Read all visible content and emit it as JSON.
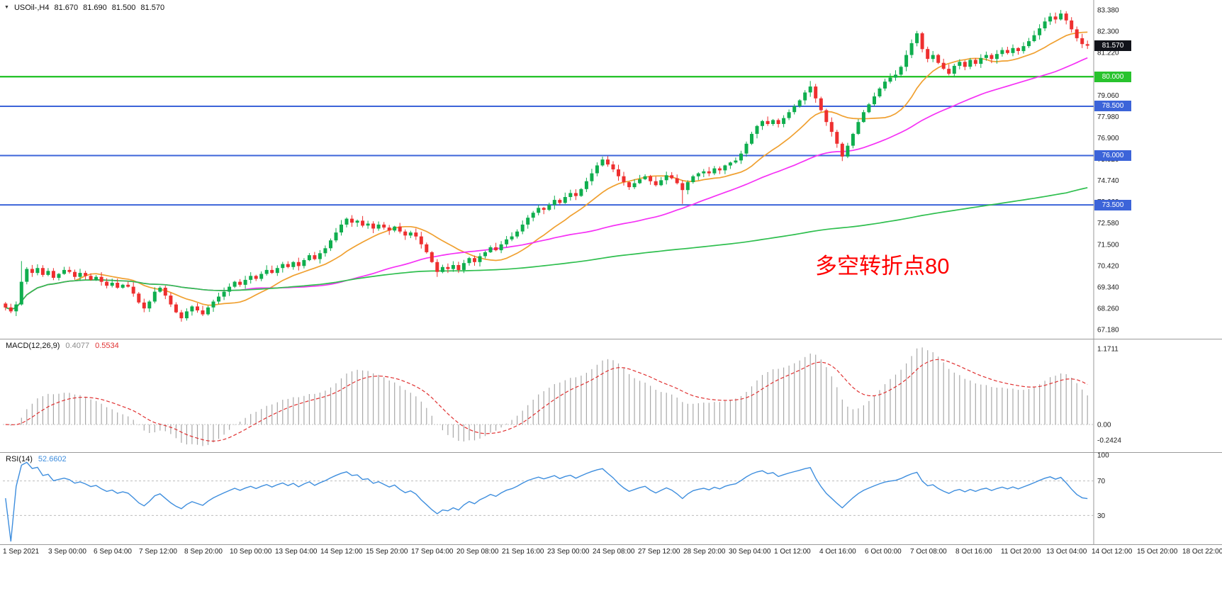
{
  "window": {
    "title_symbol": "USOil-,H4",
    "ohlc": {
      "open": "81.670",
      "high": "81.690",
      "low": "81.500",
      "close": "81.570"
    }
  },
  "annotation": {
    "text": "多空转折点80",
    "color": "#ff0000"
  },
  "current_price": {
    "value": "81.570",
    "badge_bg": "#11131a",
    "badge_fg": "#ffffff"
  },
  "chart_data": {
    "type": "candlestick",
    "symbol": "USOil",
    "timeframe": "H4",
    "grid": "off",
    "price_range": [
      67.0,
      83.6
    ],
    "first_open": 68.5,
    "closes": [
      68.3,
      68.1,
      68.45,
      69.6,
      70.25,
      70.05,
      70.3,
      69.95,
      70.15,
      69.8,
      70.0,
      70.2,
      70.1,
      69.85,
      70.05,
      69.9,
      69.7,
      69.85,
      69.6,
      69.4,
      69.55,
      69.3,
      69.45,
      69.35,
      69.0,
      68.55,
      68.25,
      68.6,
      69.1,
      69.3,
      68.9,
      68.45,
      68.05,
      67.75,
      68.1,
      68.35,
      68.15,
      67.95,
      68.3,
      68.6,
      68.85,
      69.1,
      69.35,
      69.6,
      69.45,
      69.7,
      69.9,
      69.75,
      70.0,
      70.2,
      70.05,
      70.3,
      70.5,
      70.35,
      70.6,
      70.4,
      70.7,
      70.95,
      70.75,
      71.05,
      71.3,
      71.7,
      72.1,
      72.5,
      72.8,
      72.6,
      72.7,
      72.45,
      72.55,
      72.3,
      72.5,
      72.35,
      72.2,
      72.4,
      72.15,
      71.95,
      72.1,
      71.9,
      71.5,
      71.1,
      70.6,
      70.1,
      70.35,
      70.25,
      70.45,
      70.2,
      70.55,
      70.8,
      70.6,
      70.9,
      71.1,
      71.35,
      71.2,
      71.5,
      71.75,
      71.9,
      72.15,
      72.5,
      72.85,
      73.1,
      73.35,
      73.25,
      73.5,
      73.75,
      73.6,
      73.9,
      74.1,
      73.95,
      74.3,
      74.7,
      75.1,
      75.5,
      75.8,
      75.55,
      75.3,
      74.95,
      74.65,
      74.4,
      74.6,
      74.8,
      74.95,
      74.7,
      74.5,
      74.75,
      75.0,
      74.85,
      74.6,
      74.25,
      74.65,
      74.95,
      75.1,
      75.2,
      75.1,
      75.35,
      75.25,
      75.5,
      75.65,
      75.75,
      76.1,
      76.6,
      77.1,
      77.5,
      77.75,
      77.6,
      77.8,
      77.6,
      77.9,
      78.2,
      78.5,
      78.8,
      79.2,
      79.5,
      78.9,
      78.3,
      77.7,
      77.2,
      76.6,
      75.95,
      76.5,
      77.1,
      77.7,
      78.2,
      78.6,
      79.0,
      79.4,
      79.75,
      79.95,
      80.1,
      80.5,
      81.1,
      81.7,
      82.2,
      81.4,
      80.9,
      81.1,
      80.7,
      80.4,
      80.15,
      80.55,
      80.75,
      80.5,
      80.85,
      80.65,
      80.95,
      81.1,
      80.9,
      81.15,
      81.35,
      81.2,
      81.45,
      81.3,
      81.55,
      81.8,
      82.1,
      82.45,
      82.8,
      83.05,
      82.9,
      83.2,
      82.85,
      82.4,
      81.95,
      81.65,
      81.57
    ],
    "wick_overrides": {
      "3": {
        "high": 70.65
      },
      "33": {
        "low": 67.58
      },
      "81": {
        "low": 69.85
      },
      "127": {
        "low": 73.55
      },
      "151": {
        "high": 79.78
      },
      "157": {
        "low": 75.72
      },
      "171": {
        "high": 82.32
      },
      "198": {
        "high": 83.38
      }
    },
    "bull_color": "#0fae4e",
    "bear_color": "#ee2f2f",
    "ma": [
      {
        "name": "fast",
        "period": 14,
        "color": "#f0a030"
      },
      {
        "name": "medium",
        "period": 45,
        "color": "#f531f5"
      },
      {
        "name": "slow",
        "period": 200,
        "color": "#2fbf4f"
      }
    ],
    "hlines": [
      {
        "price": 80.0,
        "label": "80.000",
        "color": "#28c32d",
        "width": 2.4
      },
      {
        "price": 78.5,
        "label": "78.500",
        "color": "#3c64d9",
        "width": 2
      },
      {
        "price": 76.0,
        "label": "76.000",
        "color": "#3c64d9",
        "width": 2
      },
      {
        "price": 73.5,
        "label": "73.500",
        "color": "#3c64d9",
        "width": 2
      }
    ],
    "price_axis": {
      "labels": [
        {
          "text": "83.380",
          "value": 83.38
        },
        {
          "text": "82.300",
          "value": 82.3
        },
        {
          "text": "81.220",
          "value": 81.22
        },
        {
          "text": "80.140",
          "value": 80.14
        },
        {
          "text": "79.060",
          "value": 79.06
        },
        {
          "text": "77.980",
          "value": 77.98
        },
        {
          "text": "76.900",
          "value": 76.9
        },
        {
          "text": "75.820",
          "value": 75.82
        },
        {
          "text": "74.740",
          "value": 74.74
        },
        {
          "text": "73.660",
          "value": 73.66
        },
        {
          "text": "72.580",
          "value": 72.58
        },
        {
          "text": "71.500",
          "value": 71.5
        },
        {
          "text": "70.420",
          "value": 70.42
        },
        {
          "text": "69.340",
          "value": 69.34
        },
        {
          "text": "68.260",
          "value": 68.26
        },
        {
          "text": "67.180",
          "value": 67.18
        }
      ]
    },
    "time_axis": {
      "labels": [
        "1 Sep 2021",
        "3 Sep 00:00",
        "6 Sep 04:00",
        "7 Sep 12:00",
        "8 Sep 20:00",
        "10 Sep 00:00",
        "13 Sep 04:00",
        "14 Sep 12:00",
        "15 Sep 20:00",
        "17 Sep 04:00",
        "20 Sep 08:00",
        "21 Sep 16:00",
        "23 Sep 00:00",
        "24 Sep 08:00",
        "27 Sep 12:00",
        "28 Sep 20:00",
        "30 Sep 04:00",
        "1 Oct 12:00",
        "4 Oct 16:00",
        "6 Oct 00:00",
        "7 Oct 08:00",
        "8 Oct 16:00",
        "11 Oct 20:00",
        "13 Oct 04:00",
        "14 Oct 12:00",
        "15 Oct 20:00",
        "18 Oct 22:00"
      ]
    },
    "macd": {
      "label": "MACD(12,26,9)",
      "value_main": "0.4077",
      "value_signal": "0.5534",
      "params": {
        "fast": 12,
        "slow": 26,
        "signal": 9
      },
      "hist_color": "#a8a8a8",
      "signal_color": "#e03131",
      "axis_labels": [
        {
          "text": "1.1711",
          "value": 1.1711
        },
        {
          "text": "0.00",
          "value": 0
        },
        {
          "text": "-0.2424",
          "value": -0.2424
        }
      ]
    },
    "rsi": {
      "label": "RSI(14)",
      "value": "52.6602",
      "period": 14,
      "line_color": "#3e8ede",
      "levels": [
        70,
        30
      ],
      "range": [
        0,
        100
      ],
      "axis_labels": [
        {
          "text": "100",
          "value": 100
        },
        {
          "text": "70",
          "value": 70
        },
        {
          "text": "30",
          "value": 30
        }
      ]
    }
  }
}
